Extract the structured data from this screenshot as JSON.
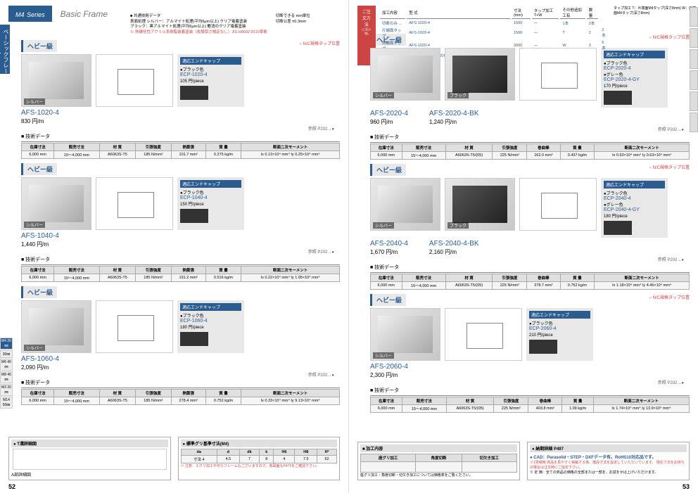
{
  "header": {
    "series": "M4",
    "seriesSuffix": "Series",
    "title": "Basic Frame"
  },
  "sideTab": "ベーシックフレーム",
  "commonData": {
    "title": "■ 共通技術データ",
    "surface": "表面処理 シルバー：アルマイト処理(平均6μm以上) クリア電着塗装",
    "black": "ブラック：黒アルマイト処理(平均6μm以上) 艶消のクリア電着塗装",
    "cut1": "切断できる mm単位",
    "cut2": "切断公差 ±0.3mm",
    "note": "※ 熱硬化性アクリル系樹脂電着塗装（皮膜厚さ規定なし）JIS H8602:2010準拠"
  },
  "orderBox": {
    "label": "ご注文方法",
    "subLabel": "(ご記入例)",
    "headers": [
      "加工内容",
      "型 式",
      "寸法(mm)",
      "タップ加工 T+W",
      "その他追加工有",
      "数 量"
    ],
    "rows": [
      [
        "切断のみ →",
        "AFS-1020-4",
        "1500",
        "ー",
        "1本",
        "2本"
      ],
      [
        "片端面タップ →",
        "AFS-1020-4",
        "1500",
        "ー",
        "T",
        "2",
        "2本"
      ],
      [
        "両端面タップ →",
        "AFS-1020-4",
        "3000",
        "ー",
        "W",
        "3",
        "5本"
      ],
      [
        "その他追加工 →",
        "上記、タップ加工の他に Z(Z,TZ,WZ)を入れ、加工図面を添付して下さい。"
      ]
    ],
    "tapNote": "タップ加工 T：片端面M4タップ(深さ8mm) W：両端面M4タップ(深さ8mm)"
  },
  "products": [
    {
      "heavy": "ヘビー級",
      "ncNote": "○ N/C規格タップ位置",
      "code": "AFS-1020-4",
      "price": "830 円/m",
      "imgLabel": "シルバー",
      "endcap": {
        "header": "適応エンドキャップ",
        "color": "●ブラック色",
        "code": "ECP-1020-4",
        "price": "105 円/piece"
      },
      "ref": "参照 P202→●",
      "dataHeaders": [
        "在庫寸法",
        "販売寸法",
        "材 質",
        "引張強度",
        "熱膨張",
        "質 量",
        "断面二次モーメント"
      ],
      "dataValues": [
        "6,000 mm",
        "15〜4,000 mm",
        "A6063S-T5",
        "185 N/mm²",
        "101.7 mm²",
        "0.275 kg/m",
        "Ix 0.13×10⁴ mm⁴ Iy 0.25×10⁴ mm⁴"
      ]
    },
    {
      "heavy": "ヘビー級",
      "code": "AFS-1040-4",
      "price": "1,440 円/m",
      "imgLabel": "シルバー",
      "endcap": {
        "header": "適応エンドキャップ",
        "color": "●ブラック色",
        "code": "ECP-1040-4",
        "price": "150 円/piece"
      },
      "ref": "参照 P202→●",
      "dataHeaders": [
        "在庫寸法",
        "販売寸法",
        "材 質",
        "引張強度",
        "熱膨張",
        "質 量",
        "断面二次モーメント"
      ],
      "dataValues": [
        "6,000 mm",
        "15〜4,000 mm",
        "A6063S-T5",
        "185 N/mm²",
        "191.2 mm²",
        "0.516 kg/m",
        "Ix 0.22×10⁴ mm⁴ Iy 1.95×10⁴ mm⁴"
      ]
    },
    {
      "heavy": "ヘビー級",
      "code": "AFS-1060-4",
      "price": "2,090 円/m",
      "imgLabel": "シルバー",
      "endcap": {
        "header": "適応エンドキャップ",
        "color": "●ブラック色",
        "code": "ECP-1060-4",
        "price": "180 円/piece"
      },
      "ref": "参照 P202→●",
      "dataHeaders": [
        "在庫寸法",
        "販売寸法",
        "材 質",
        "引張強度",
        "熱膨張",
        "質 量",
        "断面二次モーメント"
      ],
      "dataValues": [
        "6,000 mm",
        "15〜4,000 mm",
        "A6063S-T5",
        "185 N/mm²",
        "278.4 mm²",
        "0.752 kg/m",
        "Ix 0.33×10⁴ mm⁴ Iy 9.13×10⁴ mm⁴"
      ]
    }
  ],
  "productsRight": [
    {
      "heavy": "ヘビー級",
      "ncNote": "○ N/C規格タップ位置",
      "code": "AFS-2020-4",
      "code2": "AFS-2020-4-BK",
      "price": "960 円/m",
      "price2": "1,240 円/m",
      "imgLabel": "シルバー",
      "imgLabel2": "ブラック",
      "endcap": {
        "header": "適応エンドキャップ",
        "color": "●ブラック色",
        "code": "ECP-2020-4",
        "color2": "●グレー色",
        "code2": "ECP-2020-4-GY",
        "price": "170 円/piece"
      },
      "ref": "参照 P202→●",
      "dataHeaders": [
        "在庫寸法",
        "販売寸法",
        "材 質",
        "引張強度",
        "巻曲棒",
        "質 量",
        "断面二次モーメント"
      ],
      "dataValues": [
        "6,000 mm",
        "15〜4,000 mm",
        "A6063S-T5/(05)",
        "225 N/mm²",
        "162.0 mm²",
        "0.437 kg/m",
        "Ix 0.63×10⁴ mm⁴ Iy 0.63×10⁴ mm⁴"
      ]
    },
    {
      "heavy": "ヘビー級",
      "ncNote": "○ N/C規格タップ位置",
      "code": "AFS-2040-4",
      "code2": "AFS-2040-4-BK",
      "price": "1,670 円/m",
      "price2": "2,160 円/m",
      "imgLabel": "シルバー",
      "imgLabel2": "ブラック",
      "endcap": {
        "header": "適応エンドキャップ",
        "color": "●ブラック色",
        "code": "ECP-2040-4",
        "color2": "●グレー色",
        "code2": "ECP-2040-4-GY",
        "price": "180 円/piece"
      },
      "ref": "参照 P202→●",
      "dataHeaders": [
        "在庫寸法",
        "販売寸法",
        "材 質",
        "引張強度",
        "巻曲棒",
        "質 量",
        "断面二次モーメント"
      ],
      "dataValues": [
        "6,000 mm",
        "15〜4,000 mm",
        "A6063S-T5/(05)",
        "225 N/mm²",
        "278.7 mm²",
        "0.752 kg/m",
        "Ix 1.18×10⁴ mm⁴ Iy 4.45×10⁴ mm⁴"
      ]
    },
    {
      "heavy": "ヘビー級",
      "ncNote": "○ N/C規格タップ位置",
      "code": "AFS-2060-4",
      "price": "2,300 円/m",
      "imgLabel": "シルバー",
      "endcap": {
        "header": "適応エンドキャップ",
        "color": "●ブラック色",
        "code": "ECP-2060-4",
        "price": "210 円/piece"
      },
      "ref": "参照 P202→●",
      "dataHeaders": [
        "在庫寸法",
        "販売寸法",
        "材 質",
        "引張強度",
        "巻曲棒",
        "質 量",
        "断面二次モーメント"
      ],
      "dataValues": [
        "6,000 mm",
        "15〜4,000 mm",
        "A6063S-T5/(05)",
        "225 N/mm²",
        "403.8 mm²",
        "1.09 kg/m",
        "Ix 1.74×10⁴ mm⁴ Iy 13.9×10⁴ mm⁴"
      ]
    }
  ],
  "bottomLeft": {
    "tsection": "● T溝詳細図",
    "adetail": "A部詳細図",
    "gripTitle": "● 標準グリ基準寸法(M4)",
    "gripHeaders": [
      "da",
      "d",
      "dk",
      "k",
      "H6",
      "H8",
      "H²"
    ],
    "gripValues": [
      "寸法 4",
      "4.5",
      "7",
      "8",
      "4",
      "7.5",
      "52"
    ],
    "gripNote": "※ 注意：エグリ加工不可なフレームもございますので、各図面もP472をご確認下さい。"
  },
  "bottomRight": {
    "processTitle": "■ 加工内容",
    "processHeaders": [
      "座グリ加工",
      "角度切断",
      "切欠き加工"
    ],
    "processNote": "座グリ加工・角度切断・切欠き加工については価格表をご覧ください。",
    "drawingTitle": "● 納期詳細 P497",
    "cadNote": "● CAD：Parasolid・STEP・DXFデータ有。RoHS10対応品です。",
    "note1": "※1見積時 商品を見やすく掲載する為、階段寸法を設定していただいています。 現在寸法をお持ちの場合は注文時にご指定下さい。",
    "note2": "※ 定 価：全ての商品の価格の全部または一部を、お試をせば上げいただけます。"
  },
  "pageNumLeft": "52",
  "pageNumRight": "53",
  "sizeTabs": [
    "M4 20㎜",
    "30㎜",
    "M6 40㎜",
    "M8 45㎜",
    "M3 20㎜",
    "M14 50㎜"
  ]
}
